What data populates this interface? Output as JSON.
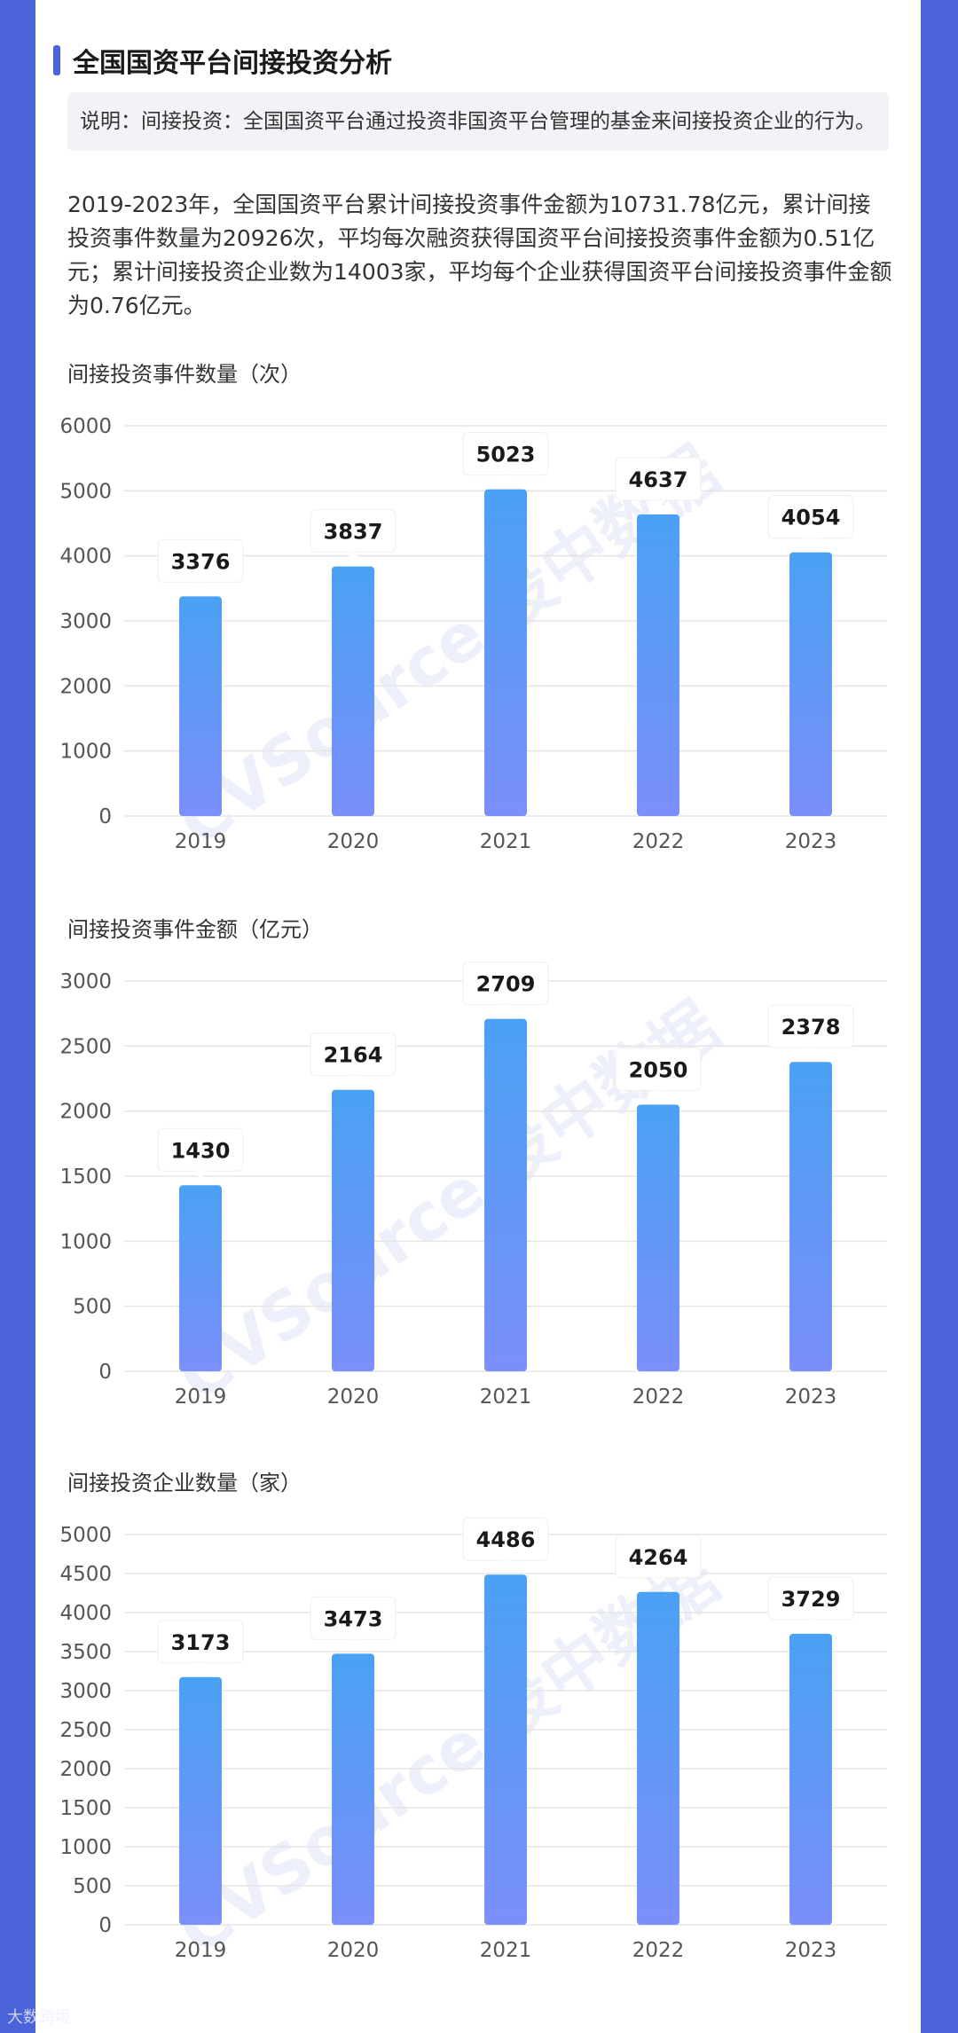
{
  "title": "全国国资平台间接投资分析",
  "note": "说明：间接投资：全国国资平台通过投资非国资平台管理的基金来间接投资企业的行为。",
  "summary": "2019-2023年，全国国资平台累计间接投资事件金额为10731.78亿元，累计间接投资事件数量为20926次，平均每次融资获得国资平台间接投资事件金额为0.51亿元；累计间接投资企业数为14003家，平均每个企业获得国资平台间接投资事件金额为0.76亿元。",
  "watermark": "CVSource 投中数据",
  "footer_logo": "大数跨境",
  "colors": {
    "bar_top": "#4aa1f3",
    "bar_bottom": "#7b8ffb",
    "accent": "#4a63d8",
    "grid": "#e5e5e5"
  },
  "chart_data": [
    {
      "type": "bar",
      "title": "间接投资事件数量（次）",
      "categories": [
        "2019",
        "2020",
        "2021",
        "2022",
        "2023"
      ],
      "values": [
        3376,
        3837,
        5023,
        4637,
        4054
      ],
      "data_labels": [
        "3376",
        "3837",
        "5023",
        "4637",
        "4054"
      ],
      "ylim": [
        0,
        6000
      ],
      "yticks": [
        0,
        1000,
        2000,
        3000,
        4000,
        5000,
        6000
      ],
      "grid": true
    },
    {
      "type": "bar",
      "title": "间接投资事件金额（亿元）",
      "categories": [
        "2019",
        "2020",
        "2021",
        "2022",
        "2023"
      ],
      "values": [
        1430,
        2164,
        2709,
        2050,
        2378
      ],
      "data_labels": [
        "1430",
        "2164",
        "2709",
        "2050",
        "2378"
      ],
      "ylim": [
        0,
        3000
      ],
      "yticks": [
        0,
        500,
        1000,
        1500,
        2000,
        2500,
        3000
      ],
      "grid": true
    },
    {
      "type": "bar",
      "title": "间接投资企业数量（家）",
      "categories": [
        "2019",
        "2020",
        "2021",
        "2022",
        "2023"
      ],
      "values": [
        3173,
        3473,
        4486,
        4264,
        3729
      ],
      "data_labels": [
        "3173",
        "3473",
        "4486",
        "4264",
        "3729"
      ],
      "ylim": [
        0,
        5000
      ],
      "yticks": [
        0,
        500,
        1000,
        1500,
        2000,
        2500,
        3000,
        3500,
        4000,
        4500,
        5000
      ],
      "grid": true
    }
  ]
}
